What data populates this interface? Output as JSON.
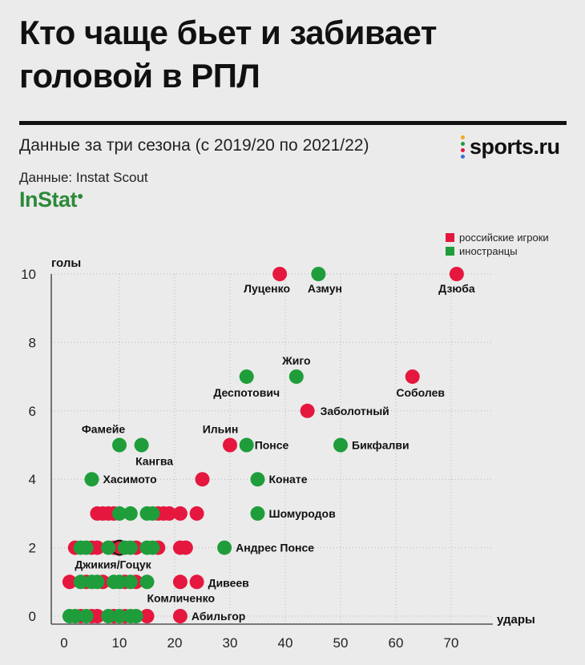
{
  "header": {
    "title": "Кто чаще бьет и забивает головой в РПЛ",
    "subtitle": "Данные за три сезона (с 2019/20 по 2021/22)",
    "source": "Данные: Instat Scout",
    "instat_logo": "InStat",
    "brand": "sports.ru"
  },
  "colors": {
    "russian": "#e5173f",
    "foreign": "#1f9d3a",
    "brand_green": "#2c8a3a"
  },
  "legend": {
    "russian": "российские игроки",
    "foreign": "иностранцы"
  },
  "chart_data": {
    "type": "scatter",
    "xlabel": "удары",
    "ylabel": "голы",
    "xlim": [
      0,
      80
    ],
    "ylim": [
      0,
      10
    ],
    "xticks": [
      "0",
      "10",
      "20",
      "30",
      "40",
      "50",
      "60",
      "70"
    ],
    "yticks": [
      "0",
      "2",
      "4",
      "6",
      "8",
      "10"
    ],
    "grid": true,
    "legend_position": "top-right",
    "series": [
      {
        "name": "российские игроки",
        "points": [
          {
            "x": 39,
            "y": 10,
            "label": "Луценко"
          },
          {
            "x": 71,
            "y": 10,
            "label": "Дзюба"
          },
          {
            "x": 63,
            "y": 7,
            "label": "Соболев"
          },
          {
            "x": 44,
            "y": 6,
            "label": "Заболотный"
          },
          {
            "x": 30,
            "y": 5,
            "label": "Ильин"
          },
          {
            "x": 25,
            "y": 4
          },
          {
            "x": 6,
            "y": 3
          },
          {
            "x": 7,
            "y": 3
          },
          {
            "x": 8,
            "y": 3
          },
          {
            "x": 9,
            "y": 3
          },
          {
            "x": 17,
            "y": 3
          },
          {
            "x": 18,
            "y": 3
          },
          {
            "x": 19,
            "y": 3
          },
          {
            "x": 21,
            "y": 3
          },
          {
            "x": 24,
            "y": 3
          },
          {
            "x": 2,
            "y": 2
          },
          {
            "x": 5,
            "y": 2
          },
          {
            "x": 6,
            "y": 2
          },
          {
            "x": 9,
            "y": 2
          },
          {
            "x": 10,
            "y": 2,
            "label": "Джикия/Гоцук"
          },
          {
            "x": 13,
            "y": 2
          },
          {
            "x": 17,
            "y": 2
          },
          {
            "x": 21,
            "y": 2
          },
          {
            "x": 22,
            "y": 2
          },
          {
            "x": 1,
            "y": 1
          },
          {
            "x": 4,
            "y": 1
          },
          {
            "x": 7,
            "y": 1
          },
          {
            "x": 11,
            "y": 1
          },
          {
            "x": 13,
            "y": 1
          },
          {
            "x": 21,
            "y": 1
          },
          {
            "x": 24,
            "y": 1,
            "label": "Дивеев"
          },
          {
            "x": 3,
            "y": 0
          },
          {
            "x": 5,
            "y": 0
          },
          {
            "x": 6,
            "y": 0
          },
          {
            "x": 9,
            "y": 0
          },
          {
            "x": 11,
            "y": 0
          },
          {
            "x": 15,
            "y": 0
          },
          {
            "x": 21,
            "y": 0,
            "label": "Абильгор"
          }
        ]
      },
      {
        "name": "иностранцы",
        "points": [
          {
            "x": 46,
            "y": 10,
            "label": "Азмун"
          },
          {
            "x": 33,
            "y": 7,
            "label": "Деспотович"
          },
          {
            "x": 42,
            "y": 7,
            "label": "Жиго"
          },
          {
            "x": 10,
            "y": 5,
            "label": "Фамейе"
          },
          {
            "x": 14,
            "y": 5,
            "label": "Кангва"
          },
          {
            "x": 33,
            "y": 5,
            "label": "Понсе"
          },
          {
            "x": 50,
            "y": 5,
            "label": "Бикфалви"
          },
          {
            "x": 5,
            "y": 4,
            "label": "Хасимото"
          },
          {
            "x": 35,
            "y": 4,
            "label": "Конате"
          },
          {
            "x": 35,
            "y": 3,
            "label": "Шомуродов"
          },
          {
            "x": 29,
            "y": 2,
            "label": "Андрес Понсе"
          },
          {
            "x": 10,
            "y": 3
          },
          {
            "x": 12,
            "y": 3
          },
          {
            "x": 15,
            "y": 3
          },
          {
            "x": 16,
            "y": 3
          },
          {
            "x": 3,
            "y": 2
          },
          {
            "x": 4,
            "y": 2
          },
          {
            "x": 8,
            "y": 2
          },
          {
            "x": 11,
            "y": 2
          },
          {
            "x": 12,
            "y": 2
          },
          {
            "x": 15,
            "y": 2
          },
          {
            "x": 16,
            "y": 2
          },
          {
            "x": 3,
            "y": 1
          },
          {
            "x": 5,
            "y": 1
          },
          {
            "x": 6,
            "y": 1
          },
          {
            "x": 9,
            "y": 1
          },
          {
            "x": 10,
            "y": 1
          },
          {
            "x": 12,
            "y": 1
          },
          {
            "x": 15,
            "y": 1,
            "label": "Комличенко"
          },
          {
            "x": 1,
            "y": 0
          },
          {
            "x": 2,
            "y": 0
          },
          {
            "x": 4,
            "y": 0
          },
          {
            "x": 8,
            "y": 0
          },
          {
            "x": 10,
            "y": 0
          },
          {
            "x": 12,
            "y": 0
          },
          {
            "x": 13,
            "y": 0
          }
        ]
      }
    ]
  }
}
